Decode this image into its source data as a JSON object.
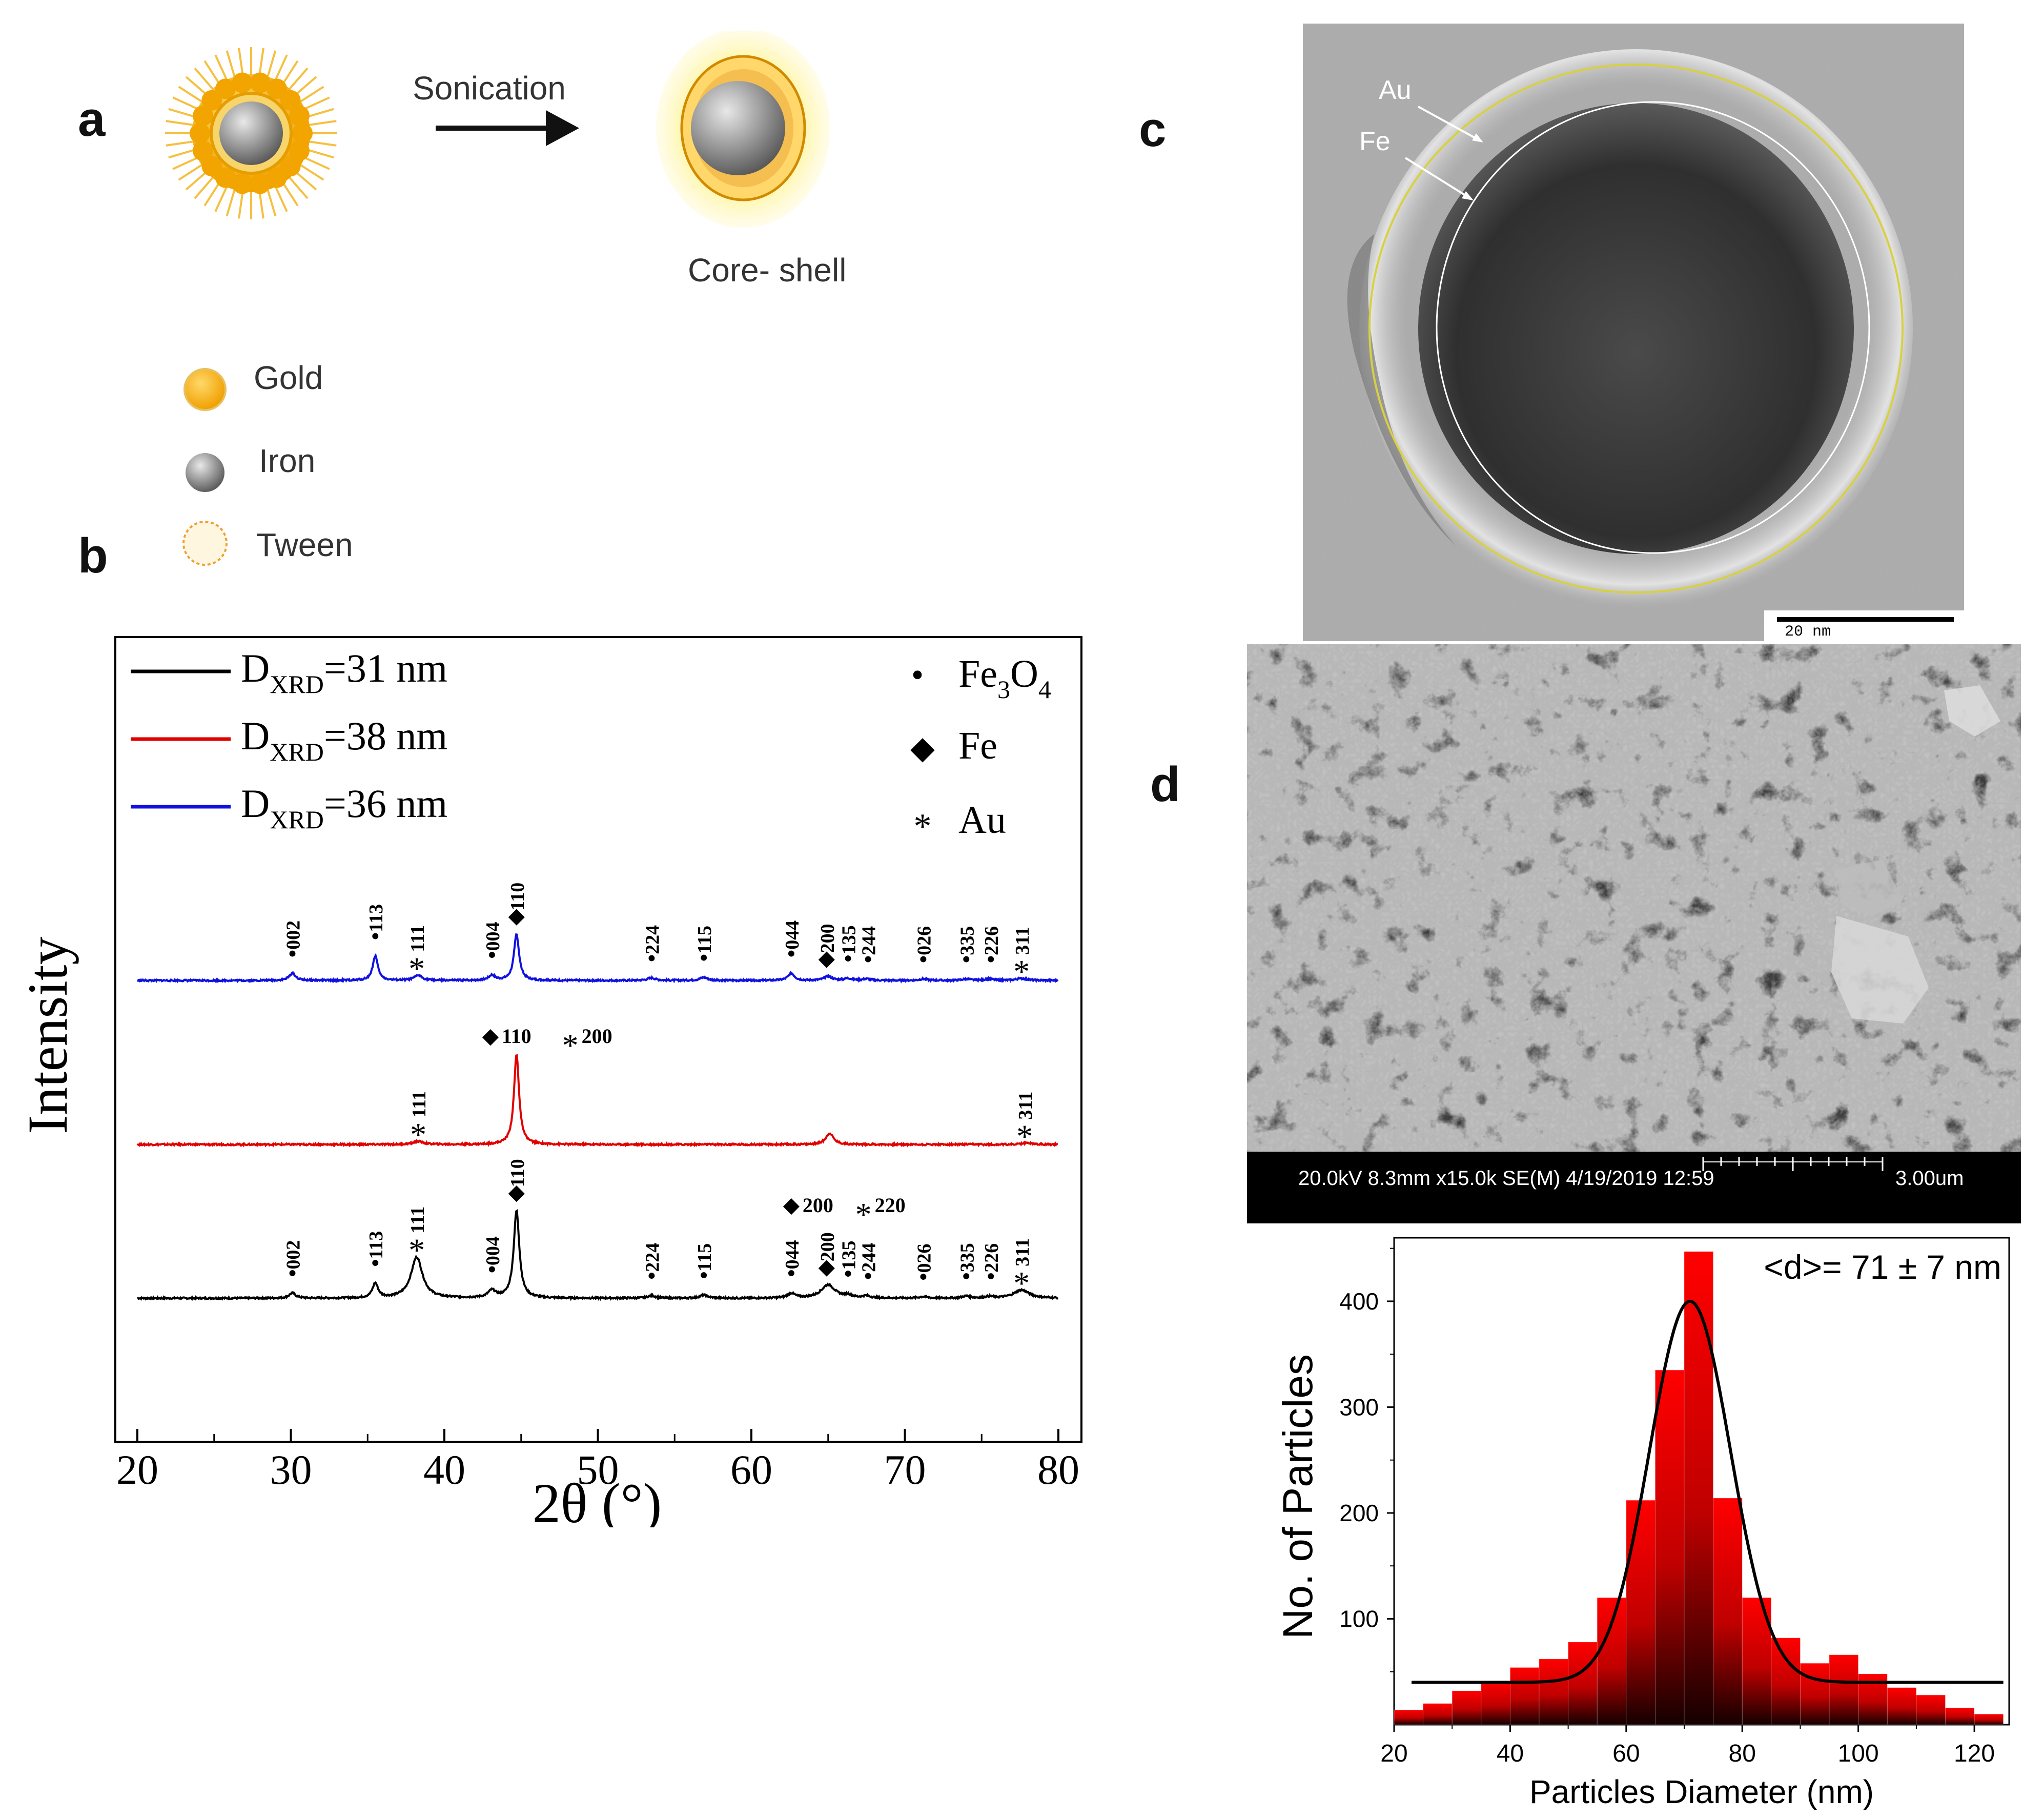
{
  "panel_labels": {
    "a": "a",
    "b": "b",
    "c": "c",
    "d": "d"
  },
  "schematic": {
    "arrow_label": "Sonication",
    "product_label": "Core- shell",
    "legend": [
      {
        "label": "Gold",
        "icon": "gold-particle-icon"
      },
      {
        "label": "Iron",
        "icon": "iron-particle-icon"
      },
      {
        "label": "Tween",
        "icon": "tween-shell-icon"
      }
    ]
  },
  "tem": {
    "au_label": "Au",
    "fe_label": "Fe",
    "scale_bar": "20 nm",
    "colors": {
      "outer_circle": "#d8d040",
      "inner_circle": "#ffffff"
    }
  },
  "sem": {
    "info_bar": "20.0kV 8.3mm x15.0k SE(M) 4/19/2019 12:59",
    "scale": "3.00um"
  },
  "chart_data": [
    {
      "type": "line",
      "title": "",
      "xlabel": "2θ (°)",
      "ylabel": "Intensity",
      "xlim": [
        20,
        80
      ],
      "xticks": [
        20,
        30,
        40,
        50,
        60,
        70,
        80
      ],
      "series": [
        {
          "name_main": "D",
          "name_sub": "XRD",
          "name_rest": "=31 nm",
          "color": "#000000",
          "offset": 0,
          "peaks": [
            [
              30.1,
              10,
              0.25
            ],
            [
              35.5,
              28,
              0.22
            ],
            [
              38.2,
              80,
              0.45
            ],
            [
              43.1,
              14,
              0.3
            ],
            [
              44.7,
              170,
              0.22
            ],
            [
              53.5,
              5,
              0.3
            ],
            [
              56.9,
              6,
              0.3
            ],
            [
              62.6,
              9,
              0.3
            ],
            [
              65.0,
              26,
              0.55
            ],
            [
              66.3,
              5,
              0.3
            ],
            [
              67.5,
              4,
              0.3
            ],
            [
              71.2,
              3,
              0.3
            ],
            [
              74.0,
              4,
              0.3
            ],
            [
              75.5,
              3,
              0.3
            ],
            [
              77.6,
              16,
              0.6
            ]
          ]
        },
        {
          "name_main": "D",
          "name_sub": "XRD",
          "name_rest": "=38 nm",
          "color": "#e00000",
          "offset": 300,
          "peaks": [
            [
              38.3,
              6,
              0.4
            ],
            [
              44.7,
              175,
              0.2
            ],
            [
              65.1,
              22,
              0.3
            ],
            [
              78.0,
              3,
              0.4
            ]
          ]
        },
        {
          "name_main": "D",
          "name_sub": "XRD",
          "name_rest": "=36 nm",
          "color": "#1010e0",
          "offset": 620,
          "peaks": [
            [
              30.1,
              14,
              0.25
            ],
            [
              35.5,
              48,
              0.2
            ],
            [
              38.3,
              10,
              0.3
            ],
            [
              43.1,
              10,
              0.25
            ],
            [
              44.7,
              90,
              0.2
            ],
            [
              53.5,
              5,
              0.3
            ],
            [
              56.9,
              6,
              0.3
            ],
            [
              62.6,
              14,
              0.25
            ],
            [
              65.0,
              8,
              0.3
            ],
            [
              66.3,
              4,
              0.3
            ],
            [
              67.5,
              3,
              0.3
            ],
            [
              71.2,
              3,
              0.3
            ],
            [
              74.0,
              3,
              0.3
            ],
            [
              75.5,
              3,
              0.3
            ],
            [
              77.6,
              4,
              0.4
            ]
          ]
        }
      ],
      "phase_legend": [
        {
          "marker": "•",
          "label_main": "Fe",
          "sub1": "3",
          "mid": "O",
          "sub2": "4"
        },
        {
          "marker": "◆",
          "label_main": "Fe",
          "sub1": "",
          "mid": "",
          "sub2": ""
        },
        {
          "marker": "*",
          "label_main": "Au",
          "sub1": "",
          "mid": "",
          "sub2": ""
        }
      ],
      "annotations": {
        "black": [
          {
            "x": 30.1,
            "m": "•",
            "t": "002"
          },
          {
            "x": 35.5,
            "m": "•",
            "t": "113"
          },
          {
            "x": 38.2,
            "m": "*",
            "t": "111"
          },
          {
            "x": 43.1,
            "m": "•",
            "t": "004"
          },
          {
            "x": 44.7,
            "m": "◆",
            "t": "110"
          },
          {
            "x": 53.5,
            "m": "•",
            "t": "224"
          },
          {
            "x": 56.9,
            "m": "•",
            "t": "115"
          },
          {
            "x": 62.6,
            "m": "•",
            "t": "044"
          },
          {
            "x": 64.9,
            "m": "◆",
            "t": "200"
          },
          {
            "x": 66.3,
            "m": "•",
            "t": "135"
          },
          {
            "x": 67.6,
            "m": "•",
            "t": "244"
          },
          {
            "x": 71.2,
            "m": "•",
            "t": "026"
          },
          {
            "x": 74.0,
            "m": "•",
            "t": "335"
          },
          {
            "x": 75.6,
            "m": "•",
            "t": "226"
          },
          {
            "x": 77.6,
            "m": "*",
            "t": "311"
          }
        ],
        "red_vertical": [
          {
            "x": 38.3,
            "m": "*",
            "t": "111"
          },
          {
            "x": 77.8,
            "m": "*",
            "t": "311"
          }
        ],
        "red_horizontal": [
          {
            "x": 43.0,
            "m": "◆",
            "t": "110"
          },
          {
            "x": 48.2,
            "m": "*",
            "t": "200"
          },
          {
            "x": 62.6,
            "m": "◆",
            "t": "200"
          },
          {
            "x": 67.3,
            "m": "*",
            "t": "220"
          }
        ],
        "blue": [
          {
            "x": 30.1,
            "m": "•",
            "t": "002"
          },
          {
            "x": 35.5,
            "m": "•",
            "t": "113"
          },
          {
            "x": 38.2,
            "m": "*",
            "t": "111"
          },
          {
            "x": 43.1,
            "m": "•",
            "t": "004"
          },
          {
            "x": 44.7,
            "m": "◆",
            "t": "110"
          },
          {
            "x": 53.5,
            "m": "•",
            "t": "224"
          },
          {
            "x": 56.9,
            "m": "•",
            "t": "115"
          },
          {
            "x": 62.6,
            "m": "•",
            "t": "044"
          },
          {
            "x": 64.9,
            "m": "◆",
            "t": "200"
          },
          {
            "x": 66.3,
            "m": "•",
            "t": "135"
          },
          {
            "x": 67.6,
            "m": "•",
            "t": "244"
          },
          {
            "x": 71.2,
            "m": "•",
            "t": "026"
          },
          {
            "x": 74.0,
            "m": "•",
            "t": "335"
          },
          {
            "x": 75.6,
            "m": "•",
            "t": "226"
          },
          {
            "x": 77.6,
            "m": "*",
            "t": "311"
          }
        ]
      }
    },
    {
      "type": "bar",
      "title": "",
      "xlabel": "Particles Diameter (nm)",
      "ylabel": "No. of Particles",
      "annotation": "<d>= 71 ± 7 nm",
      "xlim": [
        20,
        126
      ],
      "ylim": [
        0,
        460
      ],
      "xticks": [
        20,
        40,
        60,
        80,
        100,
        120
      ],
      "yticks": [
        100,
        200,
        300,
        400
      ],
      "bin_width": 5,
      "bin_starts": [
        20,
        25,
        30,
        35,
        40,
        45,
        50,
        55,
        60,
        65,
        70,
        75,
        80,
        85,
        90,
        95,
        100,
        105,
        110,
        115,
        120
      ],
      "values": [
        14,
        20,
        32,
        40,
        54,
        62,
        78,
        120,
        212,
        335,
        447,
        214,
        120,
        82,
        58,
        66,
        48,
        35,
        28,
        16,
        10
      ],
      "fit": {
        "type": "gaussian",
        "center": 71,
        "sigma": 7,
        "amplitude": 360,
        "baseline": 40,
        "x_from": 23,
        "x_to": 125
      },
      "colors": {
        "bar_top": "#ff0000",
        "bar_bottom": "#1a0000",
        "fit": "#000000"
      }
    }
  ]
}
